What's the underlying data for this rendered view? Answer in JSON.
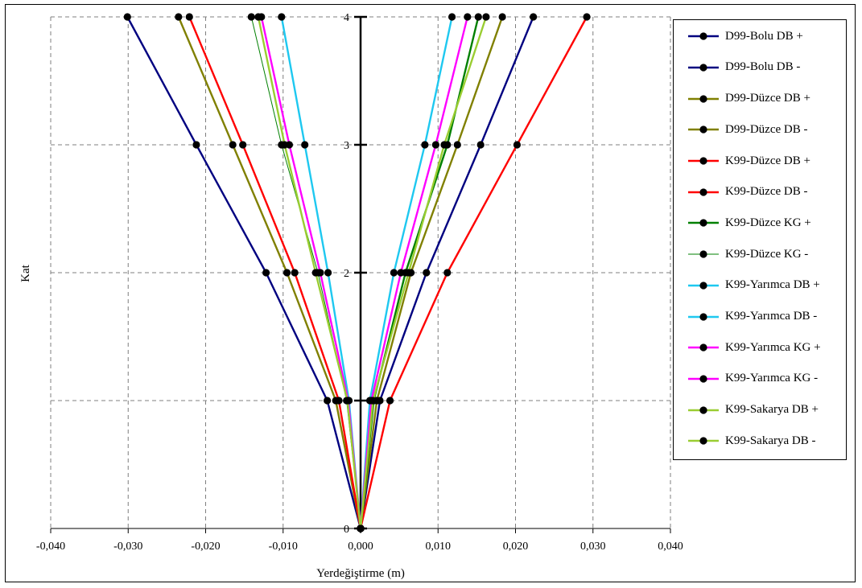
{
  "chart_data": {
    "type": "line",
    "xlabel": "Yerdeğiştirme (m)",
    "ylabel": "Kat",
    "xlim": [
      -0.04,
      0.04
    ],
    "ylim": [
      0,
      4
    ],
    "x_ticks": [
      "-0,040",
      "-0,030",
      "-0,020",
      "-0,010",
      "0,000",
      "0,010",
      "0,020",
      "0,030",
      "0,040"
    ],
    "y_ticks": [
      "0",
      "1",
      "2",
      "3",
      "4"
    ],
    "y_tick_labels_shown": [
      "0",
      "2",
      "3",
      "4"
    ],
    "grid": true,
    "legend_position": "right",
    "y": [
      0,
      1,
      2,
      3,
      4
    ],
    "series": [
      {
        "name": "D99-Bolu DB +",
        "color": "#000080",
        "values": [
          0.0,
          0.0025,
          0.0085,
          0.0155,
          0.0223
        ]
      },
      {
        "name": "D99-Bolu DB -",
        "color": "#000080",
        "values": [
          0.0,
          -0.0043,
          -0.0122,
          -0.0212,
          -0.0301
        ]
      },
      {
        "name": "D99-Düzce DB +",
        "color": "#808000",
        "values": [
          0.0,
          0.0021,
          0.0065,
          0.0125,
          0.0183
        ]
      },
      {
        "name": "D99-Düzce DB -",
        "color": "#808000",
        "values": [
          0.0,
          -0.0032,
          -0.0095,
          -0.0165,
          -0.0235
        ]
      },
      {
        "name": "K99-Düzce DB +",
        "color": "#ff0000",
        "values": [
          0.0,
          0.0038,
          0.0112,
          0.0202,
          0.0292
        ]
      },
      {
        "name": "K99-Düzce DB -",
        "color": "#ff0000",
        "values": [
          0.0,
          -0.0028,
          -0.0085,
          -0.0152,
          -0.0221
        ]
      },
      {
        "name": "K99-Düzce KG +",
        "color": "#008000",
        "values": [
          0.0,
          0.0017,
          0.0058,
          0.0112,
          0.0152
        ]
      },
      {
        "name": "K99-Düzce KG -",
        "color": "#008000",
        "values": [
          0.0,
          -0.0018,
          -0.0055,
          -0.0102,
          -0.0141
        ]
      },
      {
        "name": "K99-Yarımca DB +",
        "color": "#1ec8f0",
        "values": [
          0.0,
          0.0012,
          0.0043,
          0.0083,
          0.0118
        ]
      },
      {
        "name": "K99-Yarımca DB -",
        "color": "#1ec8f0",
        "values": [
          0.0,
          -0.0015,
          -0.0042,
          -0.0072,
          -0.0102
        ]
      },
      {
        "name": "K99-Yarımca KG +",
        "color": "#ff00ff",
        "values": [
          0.0,
          0.0014,
          0.0052,
          0.0097,
          0.0138
        ]
      },
      {
        "name": "K99-Yarımca KG -",
        "color": "#ff00ff",
        "values": [
          0.0,
          -0.0016,
          -0.0052,
          -0.0092,
          -0.0128
        ]
      },
      {
        "name": "K99-Sakarya DB +",
        "color": "#9acd32",
        "values": [
          0.0,
          0.0016,
          0.0062,
          0.0108,
          0.0162
        ]
      },
      {
        "name": "K99-Sakarya DB -",
        "color": "#9acd32",
        "values": [
          0.0,
          -0.0017,
          -0.0058,
          -0.0098,
          -0.0132
        ]
      }
    ]
  }
}
